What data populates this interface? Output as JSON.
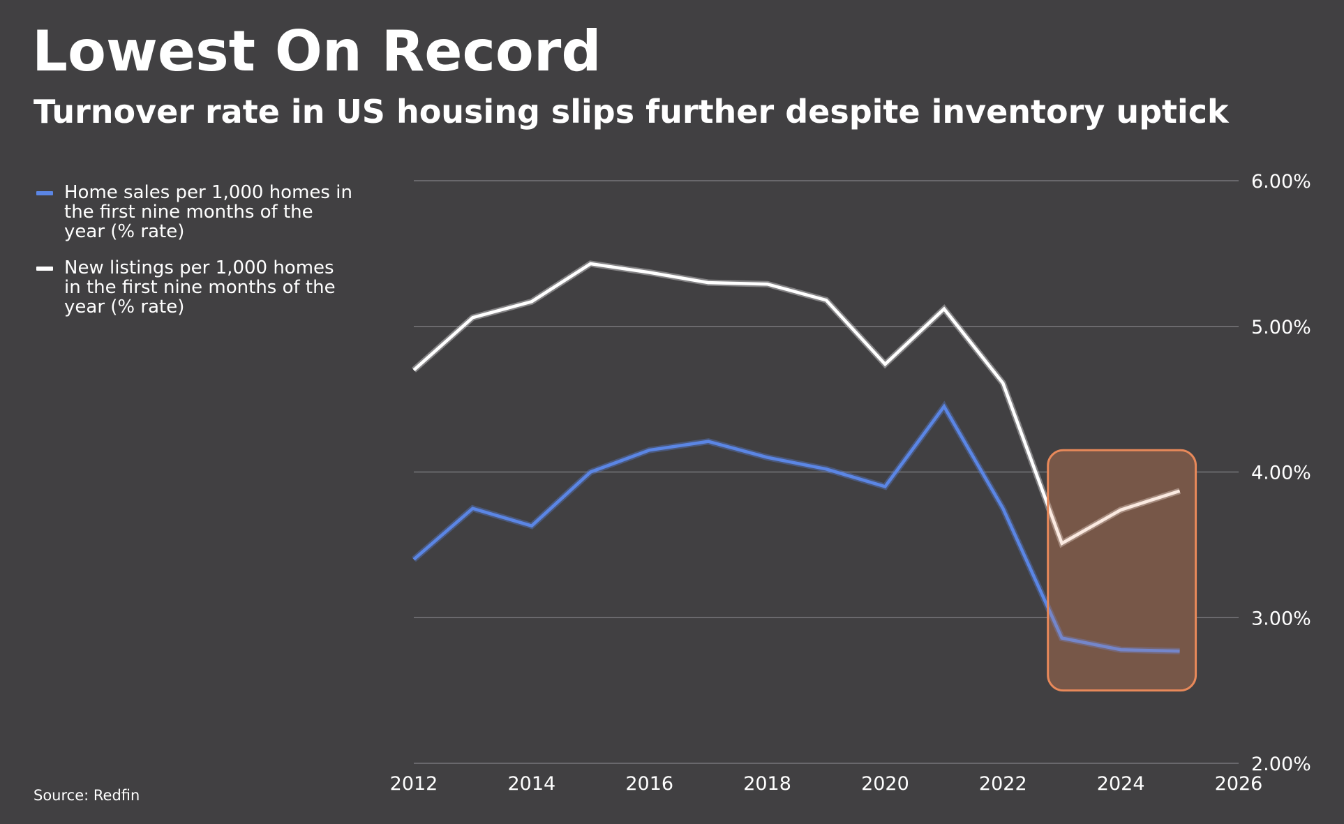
{
  "header": {
    "title": "Lowest On Record",
    "subtitle": "Turnover rate in US housing slips further despite inventory uptick"
  },
  "source": "Source: Redfin",
  "colors": {
    "background": "#414042",
    "home_sales": "#5b86e5",
    "new_listings": "#ffffff",
    "highlight_border": "#e8895a",
    "highlight_fill": "#5e4c45",
    "grid": "#77767a"
  },
  "chart_data": {
    "type": "line",
    "title": "Lowest On Record",
    "subtitle": "Turnover rate in US housing slips further despite inventory uptick",
    "xlabel": "",
    "ylabel": "",
    "xlim": [
      2012,
      2026
    ],
    "ylim": [
      2.0,
      6.0
    ],
    "x_ticks": [
      "2012",
      "2014",
      "2016",
      "2018",
      "2020",
      "2022",
      "2024",
      "2026"
    ],
    "y_ticks": [
      "2.00%",
      "3.00%",
      "4.00%",
      "5.00%",
      "6.00%"
    ],
    "y_tick_values": [
      2.0,
      3.0,
      4.0,
      5.0,
      6.0
    ],
    "y_axis_position": "right",
    "grid": "horizontal",
    "legend_position": "top-left",
    "x": [
      2012,
      2013,
      2014,
      2015,
      2016,
      2017,
      2018,
      2019,
      2020,
      2021,
      2022,
      2023,
      2024,
      2025
    ],
    "series": [
      {
        "key": "home_sales",
        "name": "Home sales per 1,000 homes in the first nine months of the year (% rate)",
        "legend_lines": [
          "Home sales per 1,000 homes in",
          "the first nine months of the",
          "year (% rate)"
        ],
        "color": "#5b86e5",
        "values": [
          3.4,
          3.75,
          3.63,
          4.0,
          4.15,
          4.21,
          4.1,
          4.02,
          3.9,
          4.45,
          3.75,
          2.86,
          2.78,
          2.77
        ]
      },
      {
        "key": "new_listings",
        "name": "New listings per 1,000 homes in the first nine months of the year (% rate)",
        "legend_lines": [
          "New listings per 1,000 homes",
          "in the first nine months of the",
          "year (% rate)"
        ],
        "color": "#ffffff",
        "values": [
          4.7,
          5.06,
          5.17,
          5.43,
          5.37,
          5.3,
          5.29,
          5.18,
          4.74,
          5.12,
          4.61,
          3.51,
          3.74,
          3.87
        ]
      }
    ],
    "highlight": {
      "x_range": [
        2023,
        2025
      ],
      "y_range": [
        2.5,
        4.15
      ],
      "border_color": "#e8895a",
      "fill_color": "#5e4c45"
    }
  }
}
